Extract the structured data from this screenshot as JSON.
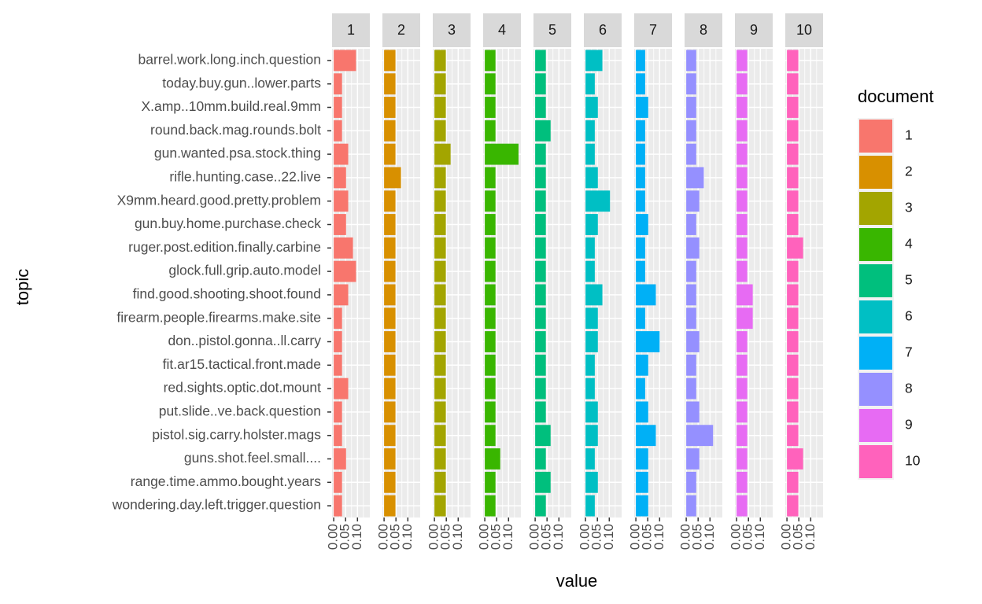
{
  "chart_data": {
    "type": "bar",
    "orientation": "horizontal",
    "facet": true,
    "x_label": "value",
    "y_label": "topic",
    "legend_title": "document",
    "categories": [
      "barrel.work.long.inch.question",
      "today.buy.gun..lower.parts",
      "X.amp..10mm.build.real.9mm",
      "round.back.mag.rounds.bolt",
      "gun.wanted.psa.stock.thing",
      "rifle.hunting.case..22.live",
      "X9mm.heard.good.pretty.problem",
      "gun.buy.home.purchase.check",
      "ruger.post.edition.finally.carbine",
      "glock.full.grip.auto.model",
      "find.good.shooting.shoot.found",
      "firearm.people.firearms.make.site",
      "don..pistol.gonna..ll.carry",
      "fit.ar15.tactical.front.made",
      "red.sights.optic.dot.mount",
      "put.slide..ve.back.question",
      "pistol.sig.carry.holster.mags",
      "guns.shot.feel.small....",
      "range.time.ammo.bought.years",
      "wondering.day.left.trigger.question"
    ],
    "xlim": [
      -0.007,
      0.152
    ],
    "xticks": [
      {
        "value": 0,
        "label": "0.00"
      },
      {
        "value": 0.05,
        "label": "0.05"
      },
      {
        "value": 0.1,
        "label": "0.10"
      }
    ],
    "minor_xticks": [
      0.025,
      0.075,
      0.125
    ],
    "grid": true,
    "legend_position": "right",
    "series": [
      {
        "name": "1",
        "color": "#F8766D",
        "values": [
          0.094,
          0.035,
          0.035,
          0.035,
          0.061,
          0.052,
          0.061,
          0.052,
          0.081,
          0.094,
          0.061,
          0.035,
          0.035,
          0.035,
          0.061,
          0.035,
          0.035,
          0.052,
          0.035,
          0.035
        ]
      },
      {
        "name": "2",
        "color": "#D89000",
        "values": [
          0.048,
          0.048,
          0.048,
          0.048,
          0.048,
          0.071,
          0.048,
          0.048,
          0.048,
          0.048,
          0.048,
          0.048,
          0.048,
          0.048,
          0.048,
          0.048,
          0.048,
          0.048,
          0.048,
          0.048
        ]
      },
      {
        "name": "3",
        "color": "#A3A500",
        "values": [
          0.048,
          0.048,
          0.048,
          0.048,
          0.068,
          0.048,
          0.048,
          0.048,
          0.048,
          0.048,
          0.048,
          0.048,
          0.048,
          0.048,
          0.048,
          0.048,
          0.048,
          0.048,
          0.048,
          0.048
        ]
      },
      {
        "name": "4",
        "color": "#39B600",
        "values": [
          0.045,
          0.045,
          0.045,
          0.045,
          0.142,
          0.045,
          0.045,
          0.045,
          0.045,
          0.045,
          0.045,
          0.045,
          0.045,
          0.045,
          0.045,
          0.045,
          0.045,
          0.065,
          0.045,
          0.045
        ]
      },
      {
        "name": "5",
        "color": "#00BF7D",
        "values": [
          0.045,
          0.045,
          0.045,
          0.065,
          0.045,
          0.045,
          0.045,
          0.045,
          0.045,
          0.045,
          0.045,
          0.045,
          0.045,
          0.045,
          0.045,
          0.045,
          0.065,
          0.045,
          0.065,
          0.045
        ]
      },
      {
        "name": "6",
        "color": "#00BFC4",
        "values": [
          0.071,
          0.039,
          0.052,
          0.039,
          0.039,
          0.052,
          0.103,
          0.052,
          0.039,
          0.039,
          0.071,
          0.052,
          0.052,
          0.039,
          0.039,
          0.052,
          0.052,
          0.039,
          0.052,
          0.039
        ]
      },
      {
        "name": "7",
        "color": "#00B0F6",
        "values": [
          0.039,
          0.039,
          0.052,
          0.039,
          0.039,
          0.039,
          0.039,
          0.052,
          0.039,
          0.039,
          0.084,
          0.039,
          0.1,
          0.052,
          0.039,
          0.052,
          0.084,
          0.052,
          0.052,
          0.052
        ]
      },
      {
        "name": "8",
        "color": "#9590FF",
        "values": [
          0.042,
          0.042,
          0.042,
          0.042,
          0.042,
          0.074,
          0.055,
          0.042,
          0.055,
          0.042,
          0.042,
          0.042,
          0.055,
          0.042,
          0.042,
          0.055,
          0.113,
          0.055,
          0.042,
          0.042
        ]
      },
      {
        "name": "9",
        "color": "#E76BF3",
        "values": [
          0.045,
          0.045,
          0.045,
          0.045,
          0.045,
          0.045,
          0.045,
          0.045,
          0.045,
          0.045,
          0.068,
          0.068,
          0.045,
          0.045,
          0.045,
          0.045,
          0.045,
          0.045,
          0.045,
          0.045
        ]
      },
      {
        "name": "10",
        "color": "#FF62BC",
        "values": [
          0.048,
          0.048,
          0.048,
          0.048,
          0.048,
          0.048,
          0.048,
          0.048,
          0.068,
          0.048,
          0.048,
          0.048,
          0.048,
          0.048,
          0.048,
          0.048,
          0.048,
          0.068,
          0.048,
          0.048
        ]
      }
    ]
  }
}
